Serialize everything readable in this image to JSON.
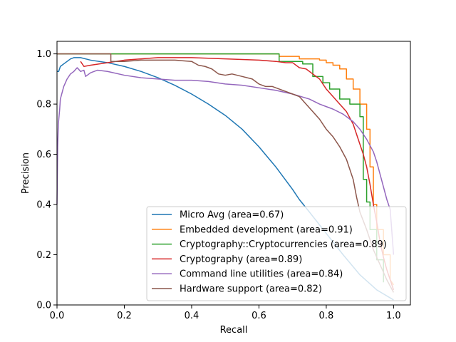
{
  "chart_data": {
    "type": "line",
    "title": "",
    "xlabel": "Recall",
    "ylabel": "Precision",
    "xlim": [
      0.0,
      1.05
    ],
    "ylim": [
      0.0,
      1.05
    ],
    "xticks": [
      "0.0",
      "0.2",
      "0.4",
      "0.6",
      "0.8",
      "1.0"
    ],
    "yticks": [
      "0.0",
      "0.2",
      "0.4",
      "0.6",
      "0.8",
      "1.0"
    ],
    "grid": false,
    "legend_position": "lower right",
    "series": [
      {
        "name": "Micro Avg (area=0.67)",
        "color": "#1f77b4",
        "step": false,
        "points": [
          [
            0.0,
            0.93
          ],
          [
            0.005,
            0.93
          ],
          [
            0.01,
            0.95
          ],
          [
            0.02,
            0.96
          ],
          [
            0.03,
            0.97
          ],
          [
            0.04,
            0.98
          ],
          [
            0.05,
            0.985
          ],
          [
            0.07,
            0.985
          ],
          [
            0.1,
            0.975
          ],
          [
            0.15,
            0.965
          ],
          [
            0.2,
            0.95
          ],
          [
            0.25,
            0.93
          ],
          [
            0.3,
            0.905
          ],
          [
            0.35,
            0.875
          ],
          [
            0.4,
            0.84
          ],
          [
            0.45,
            0.8
          ],
          [
            0.5,
            0.755
          ],
          [
            0.55,
            0.7
          ],
          [
            0.6,
            0.63
          ],
          [
            0.65,
            0.55
          ],
          [
            0.7,
            0.46
          ],
          [
            0.72,
            0.42
          ],
          [
            0.75,
            0.37
          ],
          [
            0.8,
            0.285
          ],
          [
            0.85,
            0.2
          ],
          [
            0.9,
            0.12
          ],
          [
            0.95,
            0.06
          ],
          [
            1.0,
            0.02
          ]
        ]
      },
      {
        "name": "Embedded development (area=0.91)",
        "color": "#ff7f0e",
        "step": true,
        "points": [
          [
            0.0,
            1.0
          ],
          [
            0.66,
            1.0
          ],
          [
            0.66,
            0.99
          ],
          [
            0.72,
            0.99
          ],
          [
            0.72,
            0.98
          ],
          [
            0.78,
            0.98
          ],
          [
            0.78,
            0.975
          ],
          [
            0.8,
            0.975
          ],
          [
            0.8,
            0.965
          ],
          [
            0.82,
            0.965
          ],
          [
            0.82,
            0.955
          ],
          [
            0.84,
            0.955
          ],
          [
            0.84,
            0.94
          ],
          [
            0.86,
            0.94
          ],
          [
            0.86,
            0.9
          ],
          [
            0.88,
            0.9
          ],
          [
            0.88,
            0.86
          ],
          [
            0.9,
            0.86
          ],
          [
            0.9,
            0.8
          ],
          [
            0.92,
            0.8
          ],
          [
            0.92,
            0.7
          ],
          [
            0.93,
            0.7
          ],
          [
            0.93,
            0.55
          ],
          [
            0.94,
            0.55
          ],
          [
            0.94,
            0.4
          ],
          [
            0.95,
            0.4
          ],
          [
            0.95,
            0.3
          ],
          [
            0.97,
            0.3
          ],
          [
            0.97,
            0.2
          ],
          [
            0.99,
            0.2
          ],
          [
            0.99,
            0.1
          ],
          [
            1.0,
            0.08
          ]
        ]
      },
      {
        "name": "Cryptography::Cryptocurrencies (area=0.89)",
        "color": "#2ca02c",
        "step": true,
        "points": [
          [
            0.0,
            1.0
          ],
          [
            0.66,
            1.0
          ],
          [
            0.66,
            0.97
          ],
          [
            0.73,
            0.97
          ],
          [
            0.73,
            0.96
          ],
          [
            0.76,
            0.96
          ],
          [
            0.76,
            0.91
          ],
          [
            0.79,
            0.91
          ],
          [
            0.79,
            0.885
          ],
          [
            0.81,
            0.885
          ],
          [
            0.81,
            0.86
          ],
          [
            0.84,
            0.86
          ],
          [
            0.84,
            0.82
          ],
          [
            0.87,
            0.82
          ],
          [
            0.87,
            0.8
          ],
          [
            0.9,
            0.8
          ],
          [
            0.9,
            0.75
          ],
          [
            0.91,
            0.75
          ],
          [
            0.91,
            0.5
          ],
          [
            0.92,
            0.5
          ],
          [
            0.92,
            0.41
          ],
          [
            0.93,
            0.41
          ],
          [
            0.93,
            0.3
          ],
          [
            0.95,
            0.3
          ],
          [
            0.95,
            0.18
          ],
          [
            0.97,
            0.18
          ],
          [
            0.97,
            0.09
          ]
        ]
      },
      {
        "name": "Cryptography (area=0.89)",
        "color": "#d62728",
        "step": false,
        "points": [
          [
            0.07,
            0.97
          ],
          [
            0.08,
            0.95
          ],
          [
            0.1,
            0.955
          ],
          [
            0.15,
            0.965
          ],
          [
            0.2,
            0.975
          ],
          [
            0.3,
            0.985
          ],
          [
            0.4,
            0.985
          ],
          [
            0.5,
            0.98
          ],
          [
            0.6,
            0.975
          ],
          [
            0.65,
            0.97
          ],
          [
            0.68,
            0.965
          ],
          [
            0.7,
            0.965
          ],
          [
            0.72,
            0.945
          ],
          [
            0.74,
            0.94
          ],
          [
            0.76,
            0.92
          ],
          [
            0.78,
            0.9
          ],
          [
            0.8,
            0.86
          ],
          [
            0.82,
            0.83
          ],
          [
            0.84,
            0.8
          ],
          [
            0.86,
            0.77
          ],
          [
            0.88,
            0.72
          ],
          [
            0.9,
            0.64
          ],
          [
            0.91,
            0.6
          ],
          [
            0.92,
            0.55
          ],
          [
            0.93,
            0.48
          ],
          [
            0.94,
            0.4
          ],
          [
            0.95,
            0.33
          ],
          [
            0.96,
            0.25
          ],
          [
            0.97,
            0.19
          ],
          [
            0.98,
            0.14
          ],
          [
            0.99,
            0.1
          ],
          [
            1.0,
            0.06
          ]
        ]
      },
      {
        "name": "Command line utilities (area=0.84)",
        "color": "#9467bd",
        "step": false,
        "points": [
          [
            0.0,
            0.4
          ],
          [
            0.002,
            0.63
          ],
          [
            0.004,
            0.72
          ],
          [
            0.008,
            0.78
          ],
          [
            0.01,
            0.82
          ],
          [
            0.02,
            0.87
          ],
          [
            0.03,
            0.9
          ],
          [
            0.04,
            0.92
          ],
          [
            0.05,
            0.93
          ],
          [
            0.06,
            0.945
          ],
          [
            0.07,
            0.93
          ],
          [
            0.08,
            0.935
          ],
          [
            0.085,
            0.91
          ],
          [
            0.1,
            0.925
          ],
          [
            0.12,
            0.935
          ],
          [
            0.15,
            0.93
          ],
          [
            0.2,
            0.915
          ],
          [
            0.25,
            0.905
          ],
          [
            0.3,
            0.9
          ],
          [
            0.35,
            0.895
          ],
          [
            0.4,
            0.895
          ],
          [
            0.45,
            0.89
          ],
          [
            0.5,
            0.88
          ],
          [
            0.55,
            0.875
          ],
          [
            0.6,
            0.865
          ],
          [
            0.65,
            0.855
          ],
          [
            0.7,
            0.84
          ],
          [
            0.75,
            0.82
          ],
          [
            0.78,
            0.8
          ],
          [
            0.8,
            0.79
          ],
          [
            0.82,
            0.78
          ],
          [
            0.85,
            0.76
          ],
          [
            0.88,
            0.73
          ],
          [
            0.9,
            0.7
          ],
          [
            0.92,
            0.66
          ],
          [
            0.94,
            0.61
          ],
          [
            0.95,
            0.57
          ],
          [
            0.96,
            0.52
          ],
          [
            0.97,
            0.47
          ],
          [
            0.98,
            0.42
          ],
          [
            0.99,
            0.38
          ],
          [
            1.0,
            0.2
          ]
        ]
      },
      {
        "name": "Hardware support (area=0.82)",
        "color": "#8c564b",
        "step": false,
        "points": [
          [
            0.0,
            1.0
          ],
          [
            0.16,
            1.0
          ],
          [
            0.16,
            0.97
          ],
          [
            0.2,
            0.97
          ],
          [
            0.25,
            0.975
          ],
          [
            0.3,
            0.975
          ],
          [
            0.35,
            0.975
          ],
          [
            0.4,
            0.97
          ],
          [
            0.42,
            0.955
          ],
          [
            0.44,
            0.95
          ],
          [
            0.46,
            0.94
          ],
          [
            0.48,
            0.92
          ],
          [
            0.5,
            0.915
          ],
          [
            0.52,
            0.92
          ],
          [
            0.55,
            0.91
          ],
          [
            0.58,
            0.9
          ],
          [
            0.6,
            0.88
          ],
          [
            0.62,
            0.87
          ],
          [
            0.64,
            0.87
          ],
          [
            0.66,
            0.86
          ],
          [
            0.68,
            0.85
          ],
          [
            0.7,
            0.84
          ],
          [
            0.72,
            0.83
          ],
          [
            0.74,
            0.8
          ],
          [
            0.76,
            0.77
          ],
          [
            0.78,
            0.74
          ],
          [
            0.8,
            0.7
          ],
          [
            0.82,
            0.67
          ],
          [
            0.84,
            0.63
          ],
          [
            0.86,
            0.58
          ],
          [
            0.88,
            0.5
          ],
          [
            0.89,
            0.43
          ],
          [
            0.9,
            0.37
          ],
          [
            0.92,
            0.3
          ],
          [
            0.94,
            0.22
          ],
          [
            0.96,
            0.16
          ],
          [
            0.98,
            0.1
          ],
          [
            1.0,
            0.05
          ]
        ]
      }
    ]
  }
}
